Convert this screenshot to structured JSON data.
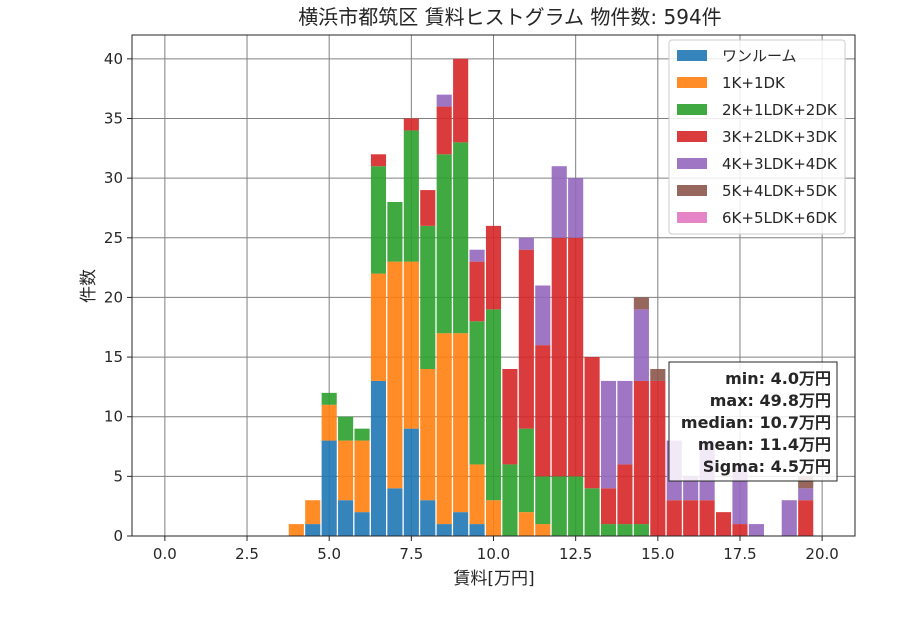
{
  "chart_data": {
    "type": "bar",
    "stacked": true,
    "title": "横浜市都筑区 賃料ヒストグラム 物件数: 594件",
    "xlabel": "賃料[万円]",
    "ylabel": "件数",
    "xlim": [
      -1,
      21
    ],
    "ylim": [
      0,
      42
    ],
    "xticks": [
      0.0,
      2.5,
      5.0,
      7.5,
      10.0,
      12.5,
      15.0,
      17.5,
      20.0
    ],
    "xtick_labels": [
      "0.0",
      "2.5",
      "5.0",
      "7.5",
      "10.0",
      "12.5",
      "15.0",
      "17.5",
      "20.0"
    ],
    "yticks": [
      0,
      5,
      10,
      15,
      20,
      25,
      30,
      35,
      40
    ],
    "ytick_labels": [
      "0",
      "5",
      "10",
      "15",
      "20",
      "25",
      "30",
      "35",
      "40"
    ],
    "grid": true,
    "legend_position": "top-right",
    "bin_width": 0.5,
    "bins": [
      4.0,
      4.5,
      5.0,
      5.5,
      6.0,
      6.5,
      7.0,
      7.5,
      8.0,
      8.5,
      9.0,
      9.5,
      10.0,
      10.5,
      11.0,
      11.5,
      12.0,
      12.5,
      13.0,
      13.5,
      14.0,
      14.5,
      15.0,
      15.5,
      16.0,
      16.5,
      17.0,
      17.5,
      18.0,
      18.5,
      19.0,
      19.5
    ],
    "series": [
      {
        "name": "ワンルーム",
        "color": "#1f77b4",
        "values": [
          0,
          1,
          8,
          3,
          2,
          13,
          4,
          9,
          3,
          1,
          2,
          1,
          0,
          0,
          0,
          0,
          0,
          0,
          0,
          0,
          0,
          0,
          0,
          0,
          0,
          0,
          0,
          0,
          0,
          0,
          0,
          0
        ]
      },
      {
        "name": "1K+1DK",
        "color": "#ff7f0e",
        "values": [
          1,
          2,
          3,
          5,
          6,
          9,
          19,
          14,
          11,
          16,
          15,
          5,
          3,
          0,
          2,
          1,
          0,
          0,
          0,
          0,
          0,
          0,
          0,
          0,
          0,
          0,
          0,
          0,
          0,
          0,
          0,
          0
        ]
      },
      {
        "name": "2K+1LDK+2DK",
        "color": "#2ca02c",
        "values": [
          0,
          0,
          1,
          2,
          1,
          9,
          5,
          11,
          12,
          15,
          16,
          12,
          16,
          6,
          7,
          4,
          5,
          5,
          4,
          1,
          1,
          1,
          0,
          0,
          0,
          0,
          0,
          0,
          0,
          0,
          0,
          0
        ]
      },
      {
        "name": "3K+2LDK+3DK",
        "color": "#d62728",
        "values": [
          0,
          0,
          0,
          0,
          0,
          1,
          0,
          1,
          3,
          4,
          7,
          5,
          7,
          8,
          15,
          11,
          20,
          20,
          11,
          3,
          5,
          12,
          13,
          3,
          3,
          3,
          2,
          1,
          0,
          0,
          0,
          3
        ]
      },
      {
        "name": "4K+3LDK+4DK",
        "color": "#9467bd",
        "values": [
          0,
          0,
          0,
          0,
          0,
          0,
          0,
          0,
          0,
          1,
          0,
          1,
          0,
          0,
          1,
          5,
          6,
          5,
          0,
          9,
          7,
          6,
          0,
          5,
          2,
          5,
          0,
          5,
          1,
          0,
          3,
          1
        ]
      },
      {
        "name": "5K+4LDK+5DK",
        "color": "#8c564b",
        "values": [
          0,
          0,
          0,
          0,
          0,
          0,
          0,
          0,
          0,
          0,
          0,
          0,
          0,
          0,
          0,
          0,
          0,
          0,
          0,
          0,
          0,
          1,
          1,
          0,
          0,
          0,
          0,
          0,
          0,
          0,
          0,
          1
        ]
      },
      {
        "name": "6K+5LDK+6DK",
        "color": "#e377c2",
        "values": [
          0,
          0,
          0,
          0,
          0,
          0,
          0,
          0,
          0,
          0,
          0,
          0,
          0,
          0,
          0,
          0,
          0,
          0,
          0,
          0,
          0,
          0,
          0,
          0,
          0,
          0,
          0,
          0,
          0,
          0,
          0,
          0
        ]
      }
    ],
    "stats": [
      "min: 4.0万円",
      "max: 49.8万円",
      "median: 10.7万円",
      "mean: 11.4万円",
      "Sigma: 4.5万円"
    ]
  }
}
